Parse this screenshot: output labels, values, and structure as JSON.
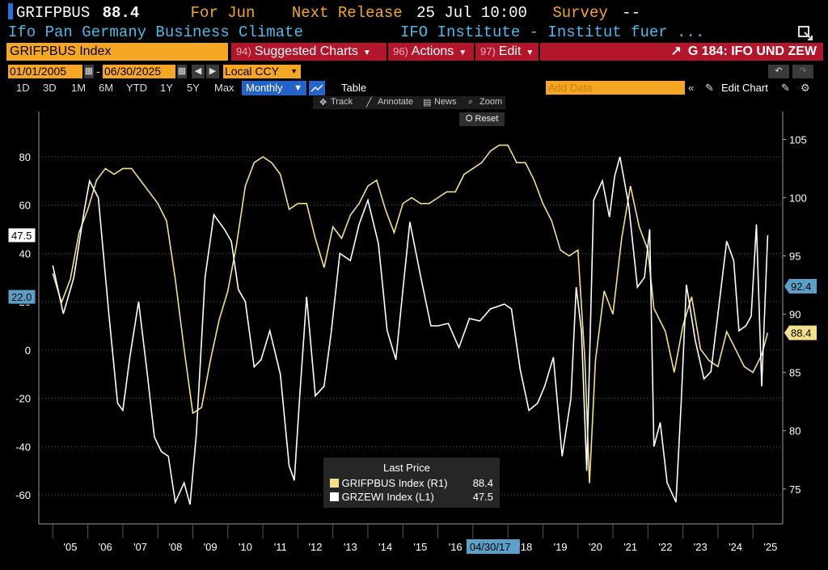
{
  "header": {
    "ticker": "GRIFPBUS",
    "last_value": "88.4",
    "period_label": "For Jun",
    "next_release_label": "Next Release",
    "next_release_value": "25 Jul 10:00",
    "survey_label": "Survey",
    "survey_value": "--",
    "description": "Ifo Pan Germany Business Climate",
    "source": "IFO Institute - Institut fuer ..."
  },
  "toolbar": {
    "security": "GRIFPBUS Index",
    "suggested_num": "94)",
    "suggested_label": "Suggested Charts",
    "actions_num": "96)",
    "actions_label": "Actions",
    "edit_num": "97)",
    "edit_label": "Edit",
    "chart_title": "G 184: IFO UND ZEW"
  },
  "date_range": {
    "start": "01/01/2005",
    "end": "06/30/2025",
    "currency": "Local CCY"
  },
  "periods": [
    "1D",
    "3D",
    "1M",
    "6M",
    "YTD",
    "1Y",
    "5Y",
    "Max"
  ],
  "frequency": "Monthly",
  "table_label": "Table",
  "add_data_placeholder": "Add Data",
  "edit_chart_label": "Edit Chart",
  "chart_tools": [
    "Track",
    "Annotate",
    "News",
    "Zoom"
  ],
  "reset_label": "Reset",
  "legend": {
    "title": "Last Price",
    "series": [
      {
        "label": "GRIFPBUS Index",
        "axis": "(R1)",
        "value": "88.4"
      },
      {
        "label": "GRZEWI Index",
        "axis": "(L1)",
        "value": "47.5"
      }
    ]
  },
  "colors": {
    "ifo": "#f2e08a",
    "zew": "#ffffff",
    "orange": "#f5a623",
    "red": "#b3162b",
    "blue": "#2463c8",
    "cyan": "#4fb6e6"
  },
  "chart_data": {
    "type": "line",
    "left_axis": {
      "ticks": [
        -60,
        -40,
        -20,
        0,
        20,
        40,
        60,
        80
      ],
      "range": [
        -72,
        92
      ]
    },
    "right_axis": {
      "ticks": [
        75,
        80,
        85,
        90,
        95,
        100,
        105
      ],
      "range": [
        72,
        106
      ]
    },
    "x_ticks": [
      "'05",
      "'06",
      "'07",
      "'08",
      "'09",
      "'10",
      "'11",
      "'12",
      "'13",
      "'14",
      "'15",
      "'16",
      "'18",
      "'19",
      "'20",
      "'21",
      "'22",
      "'23",
      "'24",
      "'25"
    ],
    "hover_date": "04/30/17",
    "left_marker": "47.5",
    "left_marker2": "22.0",
    "right_marker": "92.4",
    "right_marker2": "88.4",
    "series": [
      {
        "name": "GRIFPBUS Index",
        "axis": "right",
        "color": "#f2e08a",
        "points": [
          [
            2005.0,
            93.5
          ],
          [
            2005.25,
            91.0
          ],
          [
            2005.5,
            93.0
          ],
          [
            2005.75,
            97.0
          ],
          [
            2006.0,
            99.0
          ],
          [
            2006.25,
            101.5
          ],
          [
            2006.5,
            102.5
          ],
          [
            2006.75,
            102.0
          ],
          [
            2007.0,
            102.5
          ],
          [
            2007.25,
            102.5
          ],
          [
            2007.5,
            101.5
          ],
          [
            2007.75,
            100.5
          ],
          [
            2008.0,
            99.5
          ],
          [
            2008.25,
            98.0
          ],
          [
            2008.5,
            93.0
          ],
          [
            2008.75,
            87.0
          ],
          [
            2009.0,
            81.5
          ],
          [
            2009.25,
            82.0
          ],
          [
            2009.5,
            86.0
          ],
          [
            2009.75,
            89.5
          ],
          [
            2010.0,
            92.0
          ],
          [
            2010.25,
            96.0
          ],
          [
            2010.5,
            101.0
          ],
          [
            2010.75,
            103.0
          ],
          [
            2011.0,
            103.5
          ],
          [
            2011.25,
            103.0
          ],
          [
            2011.5,
            102.0
          ],
          [
            2011.75,
            99.0
          ],
          [
            2012.0,
            99.5
          ],
          [
            2012.25,
            99.5
          ],
          [
            2012.5,
            96.5
          ],
          [
            2012.75,
            94.0
          ],
          [
            2013.0,
            97.5
          ],
          [
            2013.25,
            96.5
          ],
          [
            2013.5,
            98.5
          ],
          [
            2013.75,
            99.5
          ],
          [
            2014.0,
            101.0
          ],
          [
            2014.25,
            101.5
          ],
          [
            2014.5,
            99.0
          ],
          [
            2014.75,
            97.0
          ],
          [
            2015.0,
            99.5
          ],
          [
            2015.25,
            100.0
          ],
          [
            2015.5,
            99.5
          ],
          [
            2015.75,
            99.5
          ],
          [
            2016.0,
            100.0
          ],
          [
            2016.25,
            100.5
          ],
          [
            2016.5,
            100.5
          ],
          [
            2016.75,
            102.0
          ],
          [
            2017.0,
            102.5
          ],
          [
            2017.25,
            103.0
          ],
          [
            2017.5,
            104.0
          ],
          [
            2017.75,
            104.5
          ],
          [
            2018.0,
            104.5
          ],
          [
            2018.25,
            103.0
          ],
          [
            2018.5,
            103.0
          ],
          [
            2018.75,
            101.5
          ],
          [
            2019.0,
            99.5
          ],
          [
            2019.25,
            98.0
          ],
          [
            2019.5,
            95.5
          ],
          [
            2019.75,
            95.0
          ],
          [
            2020.0,
            95.5
          ],
          [
            2020.2,
            86.0
          ],
          [
            2020.33,
            75.5
          ],
          [
            2020.5,
            86.0
          ],
          [
            2020.75,
            92.0
          ],
          [
            2021.0,
            90.0
          ],
          [
            2021.25,
            96.5
          ],
          [
            2021.5,
            101.0
          ],
          [
            2021.75,
            97.5
          ],
          [
            2022.0,
            95.5
          ],
          [
            2022.17,
            90.5
          ],
          [
            2022.5,
            88.5
          ],
          [
            2022.75,
            85.0
          ],
          [
            2023.0,
            89.0
          ],
          [
            2023.25,
            91.5
          ],
          [
            2023.5,
            87.0
          ],
          [
            2023.75,
            86.0
          ],
          [
            2024.0,
            85.5
          ],
          [
            2024.25,
            88.5
          ],
          [
            2024.5,
            87.0
          ],
          [
            2024.75,
            85.5
          ],
          [
            2025.0,
            85.0
          ],
          [
            2025.25,
            86.5
          ],
          [
            2025.42,
            88.4
          ]
        ]
      },
      {
        "name": "GRZEWI Index",
        "axis": "left",
        "color": "#ffffff",
        "points": [
          [
            2005.0,
            35
          ],
          [
            2005.3,
            15
          ],
          [
            2005.6,
            30
          ],
          [
            2005.9,
            58
          ],
          [
            2006.05,
            70
          ],
          [
            2006.3,
            63
          ],
          [
            2006.6,
            15
          ],
          [
            2006.85,
            -22
          ],
          [
            2007.0,
            -25
          ],
          [
            2007.2,
            -3
          ],
          [
            2007.45,
            20
          ],
          [
            2007.7,
            -10
          ],
          [
            2007.9,
            -36
          ],
          [
            2008.1,
            -42
          ],
          [
            2008.3,
            -44
          ],
          [
            2008.5,
            -63
          ],
          [
            2008.75,
            -55
          ],
          [
            2008.92,
            -64
          ],
          [
            2009.1,
            -35
          ],
          [
            2009.35,
            30
          ],
          [
            2009.6,
            56
          ],
          [
            2009.9,
            50
          ],
          [
            2010.1,
            45
          ],
          [
            2010.3,
            25
          ],
          [
            2010.5,
            20
          ],
          [
            2010.75,
            -7
          ],
          [
            2010.95,
            -4
          ],
          [
            2011.2,
            8
          ],
          [
            2011.5,
            -10
          ],
          [
            2011.75,
            -48
          ],
          [
            2011.9,
            -54
          ],
          [
            2012.05,
            -20
          ],
          [
            2012.25,
            22
          ],
          [
            2012.5,
            -19
          ],
          [
            2012.75,
            -15
          ],
          [
            2012.95,
            7
          ],
          [
            2013.2,
            40
          ],
          [
            2013.5,
            37
          ],
          [
            2013.75,
            52
          ],
          [
            2014.0,
            62
          ],
          [
            2014.3,
            44
          ],
          [
            2014.55,
            8
          ],
          [
            2014.8,
            -4
          ],
          [
            2015.0,
            25
          ],
          [
            2015.2,
            53
          ],
          [
            2015.5,
            31
          ],
          [
            2015.8,
            10
          ],
          [
            2016.0,
            10
          ],
          [
            2016.3,
            11
          ],
          [
            2016.6,
            1
          ],
          [
            2016.9,
            13
          ],
          [
            2017.2,
            12
          ],
          [
            2017.5,
            17
          ],
          [
            2017.9,
            19
          ],
          [
            2018.1,
            17
          ],
          [
            2018.35,
            -8
          ],
          [
            2018.6,
            -25
          ],
          [
            2018.85,
            -22
          ],
          [
            2019.05,
            -15
          ],
          [
            2019.3,
            -3
          ],
          [
            2019.55,
            -44
          ],
          [
            2019.8,
            -20
          ],
          [
            2019.95,
            26
          ],
          [
            2020.1,
            8
          ],
          [
            2020.25,
            -50
          ],
          [
            2020.45,
            62
          ],
          [
            2020.7,
            70
          ],
          [
            2020.9,
            55
          ],
          [
            2021.05,
            72
          ],
          [
            2021.2,
            80
          ],
          [
            2021.45,
            60
          ],
          [
            2021.7,
            26
          ],
          [
            2021.9,
            30
          ],
          [
            2022.05,
            50
          ],
          [
            2022.17,
            -40
          ],
          [
            2022.35,
            -30
          ],
          [
            2022.55,
            -55
          ],
          [
            2022.8,
            -63
          ],
          [
            2022.95,
            -22
          ],
          [
            2023.1,
            27
          ],
          [
            2023.35,
            4
          ],
          [
            2023.6,
            -12
          ],
          [
            2023.8,
            -9
          ],
          [
            2024.0,
            15
          ],
          [
            2024.25,
            45
          ],
          [
            2024.45,
            37
          ],
          [
            2024.6,
            8
          ],
          [
            2024.8,
            10
          ],
          [
            2024.95,
            14
          ],
          [
            2025.1,
            52
          ],
          [
            2025.25,
            -15
          ],
          [
            2025.42,
            47.5
          ]
        ]
      }
    ]
  }
}
